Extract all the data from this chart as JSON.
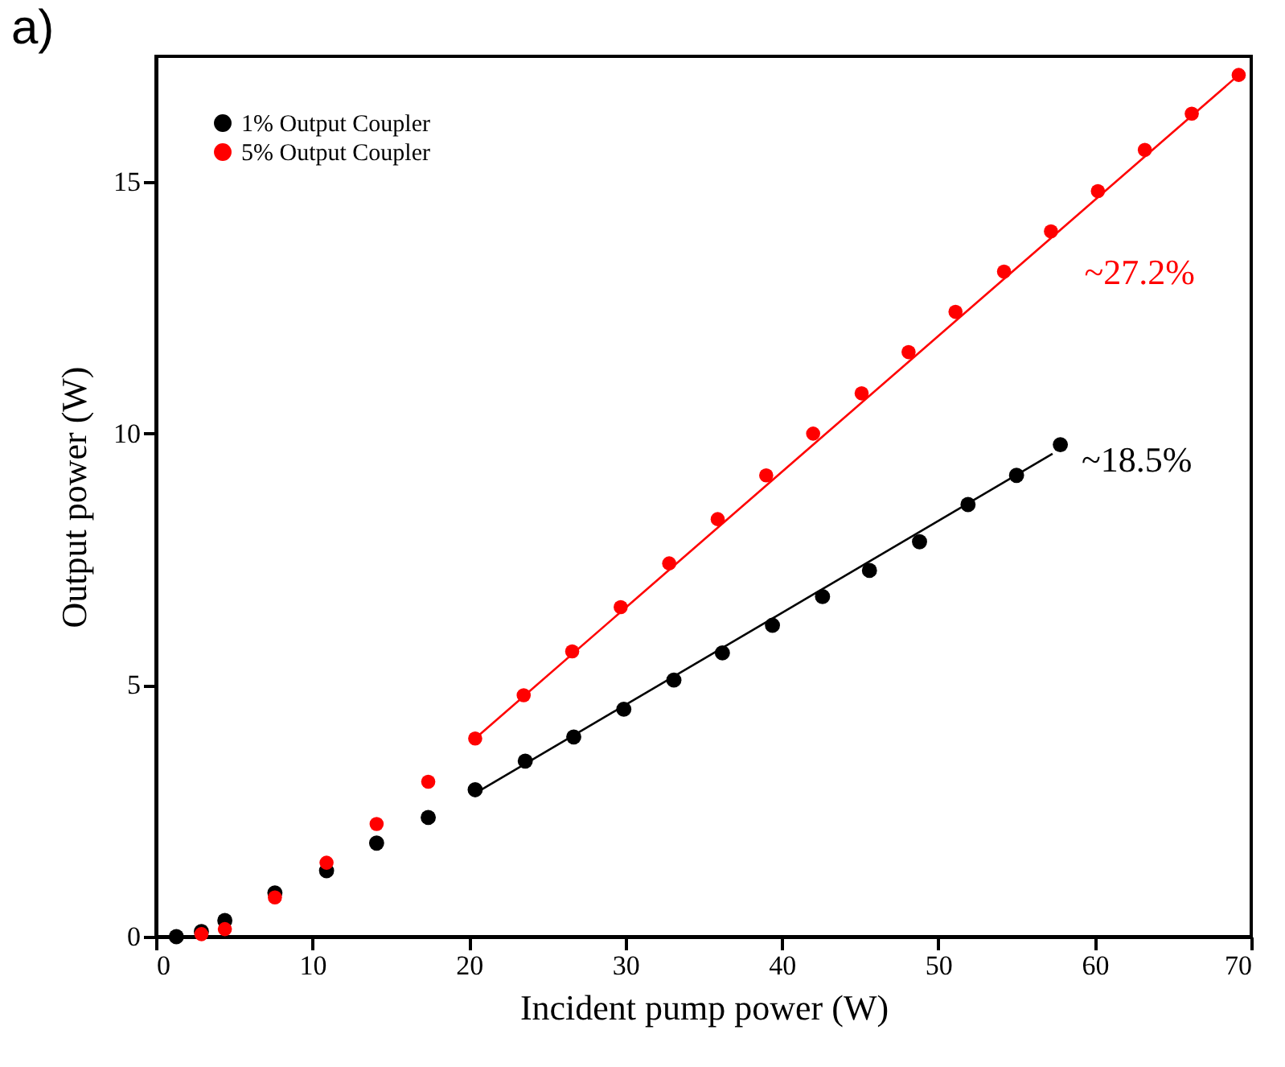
{
  "chart_data": {
    "type": "scatter",
    "title": "a)",
    "xlabel": "Incident pump power (W)",
    "ylabel": "Output power (W)",
    "xlim": [
      0,
      70
    ],
    "xticks": [
      0,
      10,
      20,
      30,
      40,
      50,
      60,
      70
    ],
    "ylim": [
      0,
      17.5
    ],
    "yticks": [
      0,
      5,
      10,
      15
    ],
    "marker": "circle",
    "legend": "top left",
    "grid": false,
    "series": [
      {
        "name": "1% Output Coupler",
        "color": "#000000",
        "x": [
          1.3,
          2.9,
          4.4,
          7.6,
          10.9,
          14.1,
          17.4,
          20.4,
          23.6,
          26.7,
          29.9,
          33.1,
          36.2,
          39.4,
          42.6,
          45.6,
          48.8,
          51.9,
          55.0,
          57.8
        ],
        "values": [
          0,
          0.1,
          0.32,
          0.87,
          1.31,
          1.86,
          2.37,
          2.92,
          3.49,
          3.97,
          4.52,
          5.1,
          5.64,
          6.19,
          6.76,
          7.28,
          7.85,
          8.59,
          9.17,
          9.78
        ]
      },
      {
        "name": "5% Output Coupler",
        "color": "#ff0000",
        "x": [
          2.9,
          4.4,
          7.6,
          10.9,
          14.1,
          17.4,
          20.4,
          23.5,
          26.6,
          29.7,
          32.8,
          35.9,
          39.0,
          42.0,
          45.1,
          48.1,
          51.1,
          54.2,
          57.2,
          60.2,
          63.2,
          66.2,
          69.2
        ],
        "values": [
          0.05,
          0.15,
          0.78,
          1.47,
          2.24,
          3.08,
          3.94,
          4.8,
          5.67,
          6.55,
          7.42,
          8.3,
          9.17,
          10.0,
          10.8,
          11.62,
          12.42,
          13.22,
          14.02,
          14.82,
          15.64,
          16.36,
          17.13
        ]
      },
      {
        "type": "line",
        "marker": "none",
        "color": "#000000",
        "x": [
          20.4,
          57.3
        ],
        "values": [
          2.85,
          9.6
        ]
      },
      {
        "type": "line",
        "marker": "none",
        "color": "#ff0000",
        "x": [
          20.4,
          69.2
        ],
        "values": [
          3.94,
          17.13
        ]
      }
    ],
    "annotations": [
      "~27.2%",
      "~18.5%"
    ]
  }
}
